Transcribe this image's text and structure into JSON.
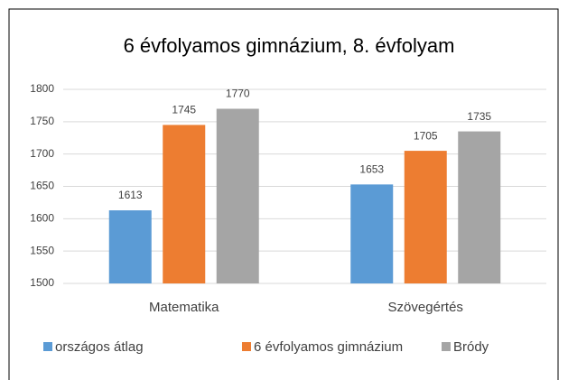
{
  "chart_data": {
    "type": "bar",
    "title": "6 évfolyamos gimnázium, 8. évfolyam",
    "categories": [
      "Matematika",
      "Szövegértés"
    ],
    "series": [
      {
        "name": "országos átlag",
        "color": "#5b9bd5",
        "values": [
          1613,
          1653
        ]
      },
      {
        "name": "6 évfolyamos gimnázium",
        "color": "#ed7d31",
        "values": [
          1745,
          1705
        ]
      },
      {
        "name": "Bródy",
        "color": "#a5a5a5",
        "values": [
          1770,
          1735
        ]
      }
    ],
    "ylim": [
      1500,
      1800
    ],
    "yticks": [
      1500,
      1550,
      1600,
      1650,
      1700,
      1750,
      1800
    ],
    "grid": true,
    "legend": "bottom"
  }
}
